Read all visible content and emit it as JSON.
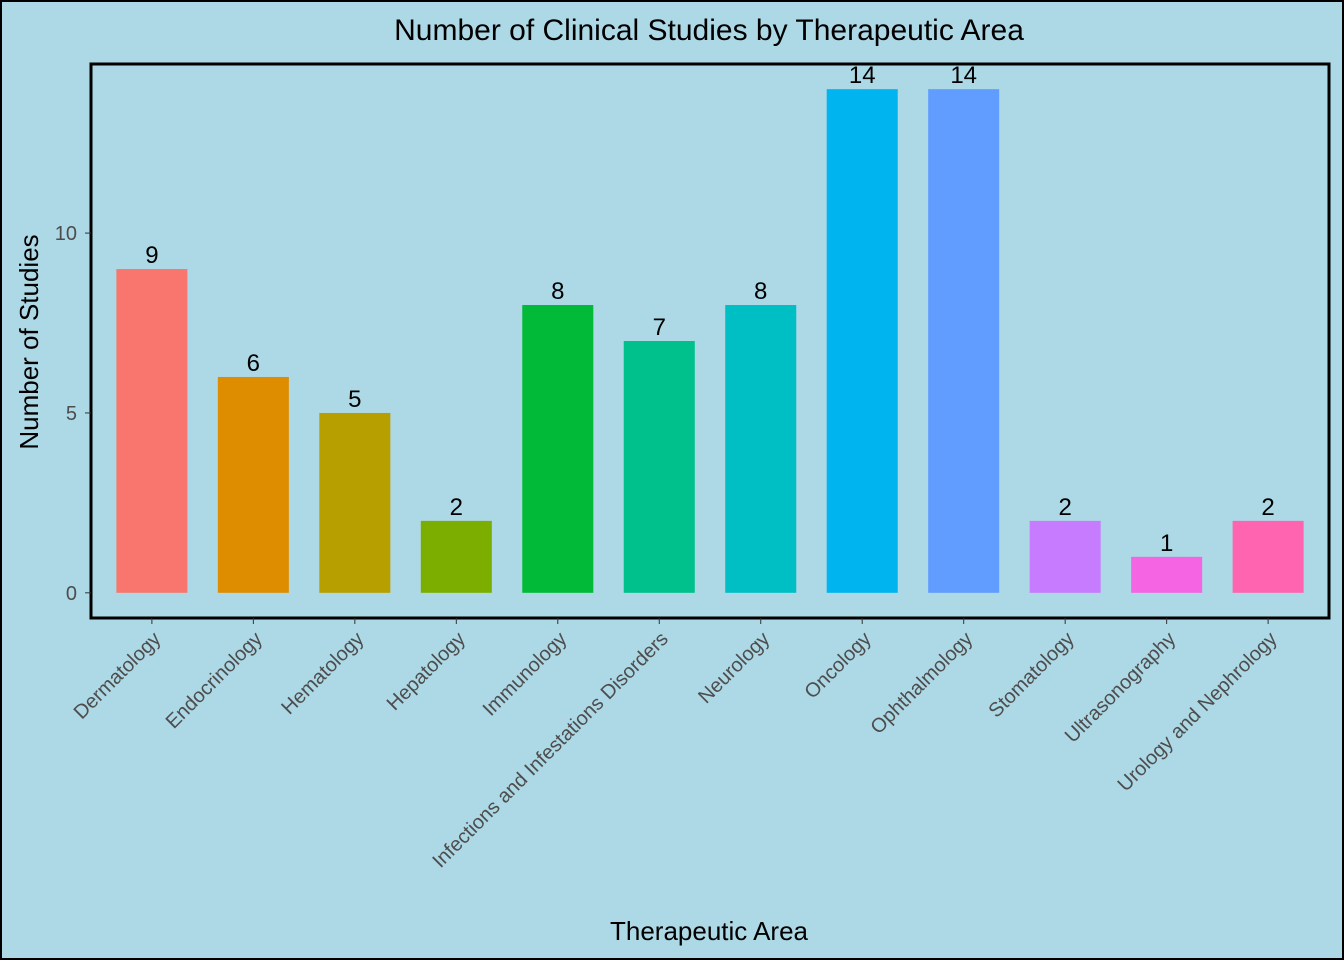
{
  "chart_data": {
    "type": "bar",
    "title": "Number of Clinical Studies by Therapeutic Area",
    "xlabel": "Therapeutic Area",
    "ylabel": "Number of Studies",
    "categories": [
      "Dermatology",
      "Endocrinology",
      "Hematology",
      "Hepatology",
      "Immunology",
      "Infections and Infestations Disorders",
      "Neurology",
      "Oncology",
      "Ophthalmology",
      "Stomatology",
      "Ultrasonography",
      "Urology and Nephrology"
    ],
    "values": [
      9,
      6,
      5,
      2,
      8,
      7,
      8,
      14,
      14,
      2,
      1,
      2
    ],
    "data_labels": [
      "9",
      "6",
      "5",
      "2",
      "8",
      "7",
      "8",
      "14",
      "14",
      "2",
      "1",
      "2"
    ],
    "colors": [
      "#f8766d",
      "#de8c00",
      "#b79f00",
      "#7cae00",
      "#00ba38",
      "#00c08b",
      "#00bfc4",
      "#00b4f0",
      "#619cff",
      "#c77cff",
      "#f564e3",
      "#ff64b0"
    ],
    "yticks": [
      0,
      5,
      10
    ],
    "ytick_labels": [
      "0",
      "5",
      "10"
    ],
    "ylim": [
      -0.7,
      14.7
    ],
    "grid": false,
    "legend": "none",
    "background": "#add8e6"
  }
}
